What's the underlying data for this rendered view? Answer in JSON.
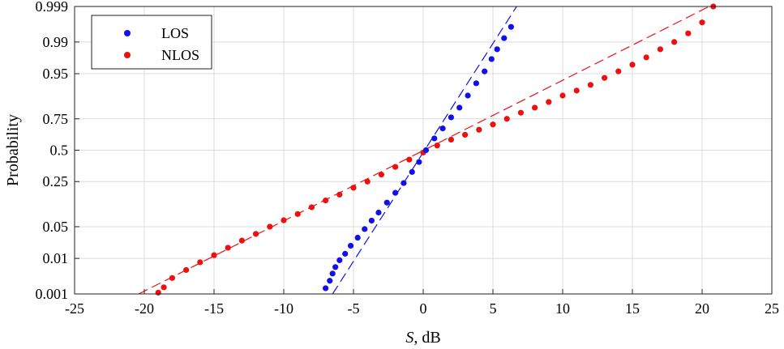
{
  "chart_data": {
    "type": "scatter",
    "title": "",
    "xlabel": {
      "italic": "S",
      "rest": ", dB"
    },
    "ylabel": "Probability",
    "xlim": [
      -25,
      25
    ],
    "x_ticks": [
      -25,
      -20,
      -15,
      -10,
      -5,
      0,
      5,
      10,
      15,
      20,
      25
    ],
    "x_tick_labels": [
      "-25",
      "-20",
      "-15",
      "-10",
      "-5",
      "0",
      "5",
      "10",
      "15",
      "20",
      "25"
    ],
    "y_scale": "normal-probability",
    "ylim": [
      0.001,
      0.999
    ],
    "y_ticks": [
      0.001,
      0.01,
      0.05,
      0.25,
      0.5,
      0.75,
      0.95,
      0.99,
      0.999
    ],
    "y_tick_labels": [
      "0.001",
      "0.01",
      "0.05",
      "0.25",
      "0.5",
      "0.75",
      "0.95",
      "0.99",
      "0.999"
    ],
    "grid": true,
    "legend_position": "top-left",
    "series": [
      {
        "name": "LOS",
        "color": "#1010e8",
        "marker": "dot",
        "fit_line": {
          "style": "dashed",
          "x": [
            -6.5,
            6.7
          ],
          "prob": [
            0.001,
            0.999
          ]
        },
        "points": [
          [
            -7.0,
            0.0015
          ],
          [
            -6.7,
            0.0025
          ],
          [
            -6.5,
            0.004
          ],
          [
            -6.3,
            0.006
          ],
          [
            -6.0,
            0.009
          ],
          [
            -5.6,
            0.013
          ],
          [
            -5.2,
            0.02
          ],
          [
            -4.7,
            0.03
          ],
          [
            -4.2,
            0.045
          ],
          [
            -3.7,
            0.065
          ],
          [
            -3.2,
            0.09
          ],
          [
            -2.6,
            0.13
          ],
          [
            -2.0,
            0.18
          ],
          [
            -1.4,
            0.24
          ],
          [
            -0.8,
            0.32
          ],
          [
            -0.3,
            0.4
          ],
          [
            0.2,
            0.5
          ],
          [
            0.8,
            0.6
          ],
          [
            1.4,
            0.68
          ],
          [
            2.0,
            0.76
          ],
          [
            2.6,
            0.82
          ],
          [
            3.2,
            0.88
          ],
          [
            3.8,
            0.925
          ],
          [
            4.4,
            0.955
          ],
          [
            4.9,
            0.975
          ],
          [
            5.3,
            0.985
          ],
          [
            5.8,
            0.992
          ],
          [
            6.3,
            0.996
          ]
        ]
      },
      {
        "name": "NLOS",
        "color": "#ee1010",
        "marker": "dot",
        "fit_line": {
          "style": "dashed",
          "x": [
            -20.4,
            20.5
          ],
          "prob": [
            0.001,
            0.999
          ]
        },
        "points": [
          [
            -19.0,
            0.0011
          ],
          [
            -18.6,
            0.0016
          ],
          [
            -18.0,
            0.003
          ],
          [
            -17.0,
            0.005
          ],
          [
            -16.0,
            0.008
          ],
          [
            -15.0,
            0.012
          ],
          [
            -14.0,
            0.018
          ],
          [
            -13.0,
            0.026
          ],
          [
            -12.0,
            0.036
          ],
          [
            -11.0,
            0.05
          ],
          [
            -10.0,
            0.066
          ],
          [
            -9.0,
            0.085
          ],
          [
            -8.0,
            0.11
          ],
          [
            -7.0,
            0.14
          ],
          [
            -6.0,
            0.17
          ],
          [
            -5.0,
            0.21
          ],
          [
            -4.0,
            0.25
          ],
          [
            -3.0,
            0.3
          ],
          [
            -2.0,
            0.36
          ],
          [
            -1.0,
            0.42
          ],
          [
            0.0,
            0.48
          ],
          [
            1.0,
            0.54
          ],
          [
            2.0,
            0.59
          ],
          [
            3.0,
            0.63
          ],
          [
            4.0,
            0.67
          ],
          [
            5.0,
            0.71
          ],
          [
            6.0,
            0.75
          ],
          [
            7.0,
            0.79
          ],
          [
            8.0,
            0.82
          ],
          [
            9.0,
            0.85
          ],
          [
            10.0,
            0.88
          ],
          [
            11.0,
            0.9
          ],
          [
            12.0,
            0.92
          ],
          [
            13.0,
            0.94
          ],
          [
            14.0,
            0.955
          ],
          [
            15.0,
            0.967
          ],
          [
            16.0,
            0.977
          ],
          [
            17.0,
            0.985
          ],
          [
            18.0,
            0.99
          ],
          [
            19.0,
            0.994
          ],
          [
            20.0,
            0.997
          ],
          [
            20.8,
            0.999
          ]
        ]
      }
    ]
  }
}
